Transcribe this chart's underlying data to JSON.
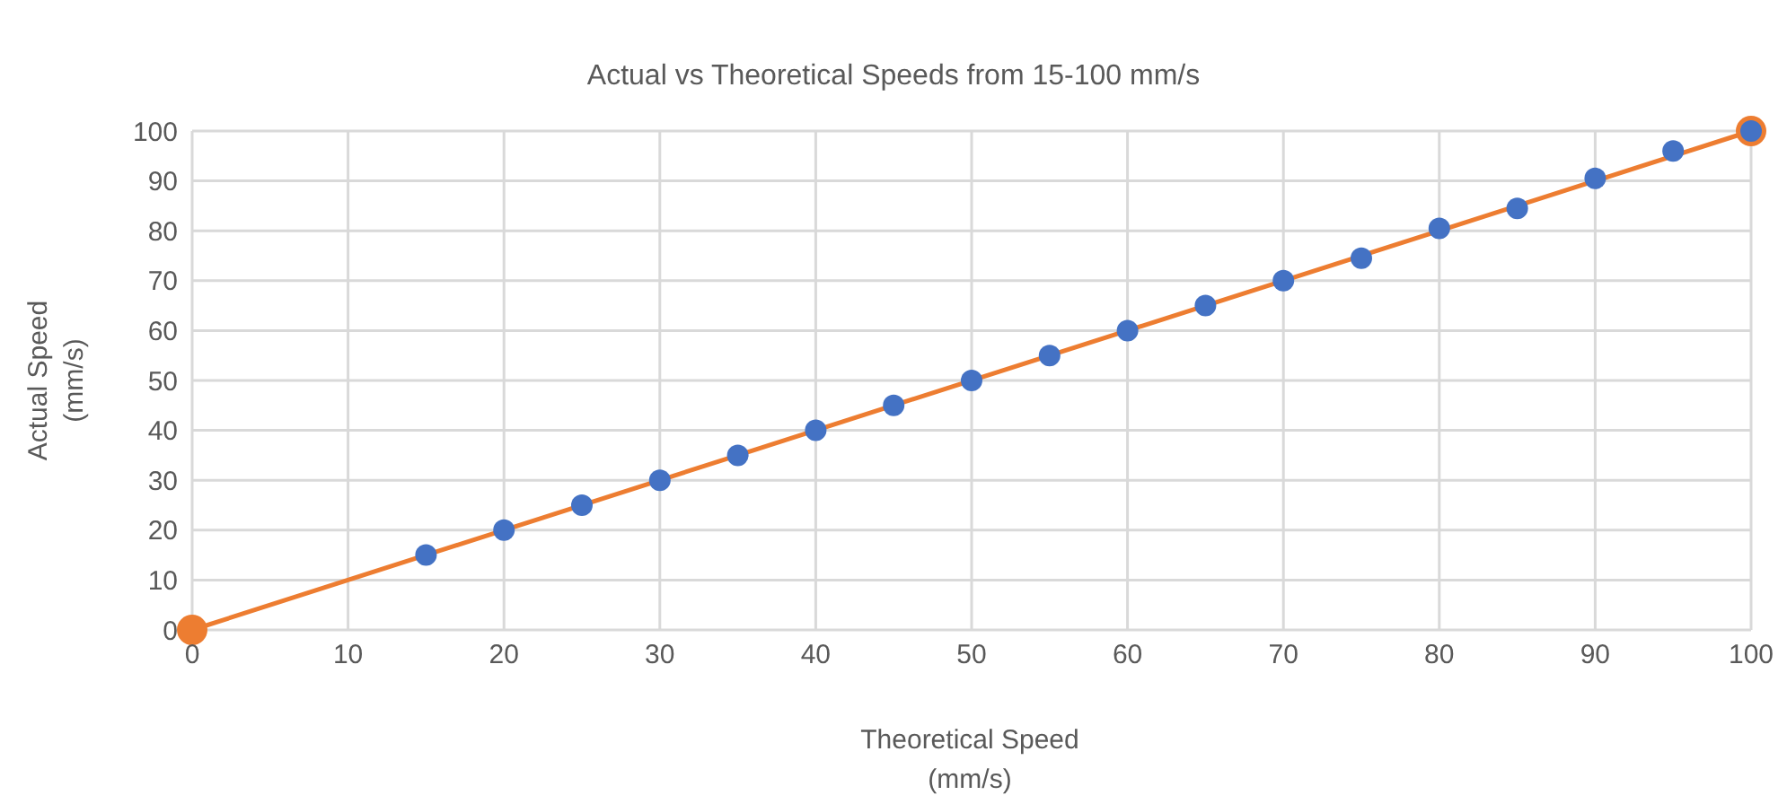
{
  "chart_data": {
    "type": "scatter",
    "title": "Actual vs Theoretical Speeds from 15-100 mm/s",
    "xlabel": "Theoretical Speed\n(mm/s)",
    "ylabel": "Actual Speed\n(mm/s)",
    "series": [
      {
        "type": "scatter",
        "color": "#4472c4",
        "x": [
          15,
          20,
          25,
          30,
          35,
          40,
          45,
          50,
          55,
          60,
          65,
          70,
          75,
          80,
          85,
          90,
          95,
          100
        ],
        "values": [
          15,
          20,
          25,
          30,
          35,
          40,
          45,
          50,
          55,
          60,
          65,
          70,
          74.5,
          80.5,
          84.5,
          90.5,
          96,
          100
        ]
      },
      {
        "type": "line",
        "color": "#ed7d31",
        "x": [
          0,
          100
        ],
        "values": [
          0,
          100
        ]
      }
    ],
    "xlim": [
      0,
      100
    ],
    "xticks": [
      0,
      10,
      20,
      30,
      40,
      50,
      60,
      70,
      80,
      90,
      100
    ],
    "ylim": [
      0,
      100
    ],
    "yticks": [
      0,
      10,
      20,
      30,
      40,
      50,
      60,
      70,
      80,
      90,
      100
    ],
    "grid": true,
    "marker": "circle",
    "line_style": "solid",
    "legend": false
  }
}
